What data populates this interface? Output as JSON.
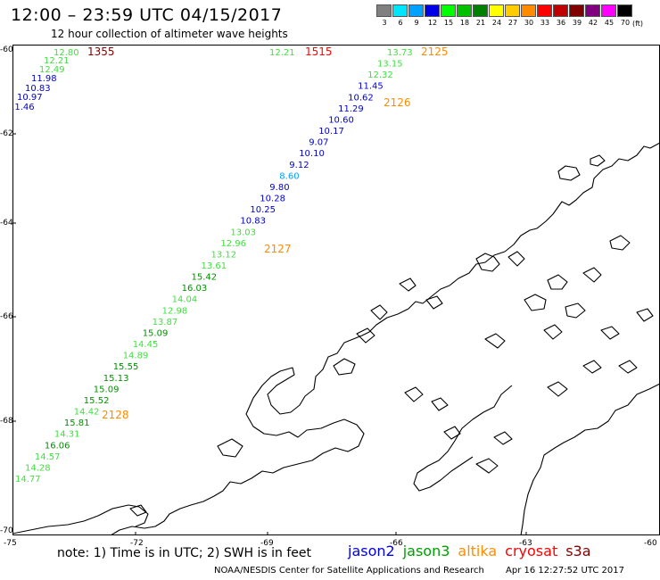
{
  "header": {
    "title": "12:00 – 23:59 UTC 04/15/2017",
    "subtitle": "12 hour collection of altimeter wave heights"
  },
  "scale": {
    "unit": "(ft)",
    "bins": [
      {
        "label": "3",
        "color": "#808080"
      },
      {
        "label": "6",
        "color": "#00e5ff"
      },
      {
        "label": "9",
        "color": "#00a0ff"
      },
      {
        "label": "12",
        "color": "#0000e6"
      },
      {
        "label": "15",
        "color": "#00ff00"
      },
      {
        "label": "18",
        "color": "#00c000"
      },
      {
        "label": "21",
        "color": "#008000"
      },
      {
        "label": "24",
        "color": "#ffff00"
      },
      {
        "label": "27",
        "color": "#ffcc00"
      },
      {
        "label": "30",
        "color": "#ff8c00"
      },
      {
        "label": "33",
        "color": "#ff0000"
      },
      {
        "label": "36",
        "color": "#c00000"
      },
      {
        "label": "39",
        "color": "#800000"
      },
      {
        "label": "42",
        "color": "#800080"
      },
      {
        "label": "45",
        "color": "#ff00ff"
      },
      {
        "label": "70",
        "color": "#000000"
      }
    ]
  },
  "axes": {
    "lat_labels": [
      "-60",
      "-62",
      "-64",
      "-66",
      "-68",
      "-70"
    ],
    "lon_labels": [
      "-75",
      "-72",
      "-69",
      "-66",
      "-63",
      "-60"
    ]
  },
  "tracks": [
    {
      "name": "track-1355",
      "times": [
        {
          "text": "1355",
          "color": "#800000"
        }
      ],
      "values": [
        {
          "text": "12.80",
          "color": "#40e040"
        },
        {
          "text": "12.21",
          "color": "#40e040"
        },
        {
          "text": "12.49",
          "color": "#40e040"
        },
        {
          "text": "11.98",
          "color": "#0000d0"
        },
        {
          "text": "10.83",
          "color": "#0000d0"
        },
        {
          "text": "10.97",
          "color": "#0000d0"
        },
        {
          "text": "11.46",
          "color": "#0000d0"
        }
      ]
    },
    {
      "name": "track-1515",
      "times": [
        {
          "text": "1515",
          "color": "#ff0000"
        }
      ],
      "values": [
        {
          "text": "12.21",
          "color": "#40e040"
        }
      ]
    },
    {
      "name": "track-2125",
      "times": [
        {
          "text": "2125",
          "color": "#ff8c00"
        },
        {
          "text": "2126",
          "color": "#ff8c00"
        },
        {
          "text": "2127",
          "color": "#ff8c00"
        },
        {
          "text": "2128",
          "color": "#ff8c00"
        }
      ],
      "values": [
        {
          "text": "13.73",
          "color": "#40e040"
        },
        {
          "text": "13.15",
          "color": "#40e040"
        },
        {
          "text": "12.32",
          "color": "#40e040"
        },
        {
          "text": "11.45",
          "color": "#0000d0"
        },
        {
          "text": "10.62",
          "color": "#0000d0"
        },
        {
          "text": "11.29",
          "color": "#0000d0"
        },
        {
          "text": "10.60",
          "color": "#0000d0"
        },
        {
          "text": "10.17",
          "color": "#0000d0"
        },
        {
          "text": "9.07",
          "color": "#0000d0"
        },
        {
          "text": "10.10",
          "color": "#0000d0"
        },
        {
          "text": "9.12",
          "color": "#0000d0"
        },
        {
          "text": "8.60",
          "color": "#00a0ff"
        },
        {
          "text": "9.80",
          "color": "#0000d0"
        },
        {
          "text": "10.28",
          "color": "#0000d0"
        },
        {
          "text": "10.25",
          "color": "#0000d0"
        },
        {
          "text": "10.83",
          "color": "#0000d0"
        },
        {
          "text": "13.03",
          "color": "#40e040"
        },
        {
          "text": "12.96",
          "color": "#40e040"
        },
        {
          "text": "13.12",
          "color": "#40e040"
        },
        {
          "text": "13.61",
          "color": "#40e040"
        },
        {
          "text": "15.42",
          "color": "#009000"
        },
        {
          "text": "16.03",
          "color": "#009000"
        },
        {
          "text": "14.04",
          "color": "#40e040"
        },
        {
          "text": "12.98",
          "color": "#40e040"
        },
        {
          "text": "13.87",
          "color": "#40e040"
        },
        {
          "text": "15.09",
          "color": "#009000"
        },
        {
          "text": "14.45",
          "color": "#40e040"
        },
        {
          "text": "14.89",
          "color": "#40e040"
        },
        {
          "text": "15.55",
          "color": "#009000"
        },
        {
          "text": "15.13",
          "color": "#009000"
        },
        {
          "text": "15.09",
          "color": "#009000"
        },
        {
          "text": "15.52",
          "color": "#009000"
        },
        {
          "text": "14.42",
          "color": "#40e040"
        },
        {
          "text": "15.81",
          "color": "#009000"
        },
        {
          "text": "14.31",
          "color": "#40e040"
        },
        {
          "text": "16.06",
          "color": "#009000"
        },
        {
          "text": "14.57",
          "color": "#40e040"
        },
        {
          "text": "14.28",
          "color": "#40e040"
        },
        {
          "text": "14.77",
          "color": "#40e040"
        }
      ]
    }
  ],
  "footer": {
    "note": "note: 1) Time is in UTC; 2) SWH is in feet",
    "legend": [
      {
        "text": "jason2",
        "color": "#0000e6"
      },
      {
        "text": "jason3",
        "color": "#00a000"
      },
      {
        "text": "altika",
        "color": "#ff8c00"
      },
      {
        "text": "cryosat",
        "color": "#ff0000"
      },
      {
        "text": "s3a",
        "color": "#800000"
      }
    ],
    "credit": "NOAA/NESDIS Center for Satellite Applications and Research",
    "timestamp": "Apr 16 12:27:52 UTC 2017"
  }
}
